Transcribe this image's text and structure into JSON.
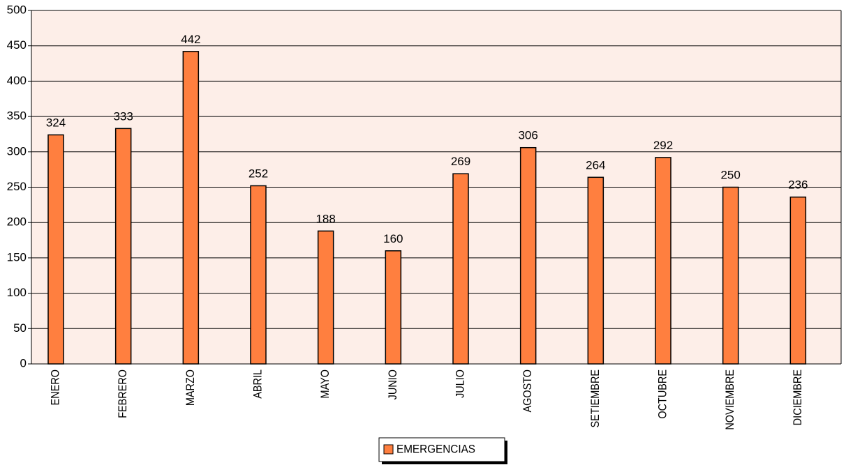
{
  "chart_data": {
    "type": "bar",
    "categories": [
      "ENERO",
      "FEBRERO",
      "MARZO",
      "ABRIL",
      "MAYO",
      "JUNIO",
      "JULIO",
      "AGOSTO",
      "SETIEMBRE",
      "OCTUBRE",
      "NOVIEMBRE",
      "DICIEMBRE"
    ],
    "series": [
      {
        "name": "EMERGENCIAS",
        "color": "#ff7f3f",
        "values": [
          324,
          333,
          442,
          252,
          188,
          160,
          269,
          306,
          264,
          292,
          250,
          236
        ]
      }
    ],
    "ylim": [
      0,
      500
    ],
    "yticks": [
      0,
      50,
      100,
      150,
      200,
      250,
      300,
      350,
      400,
      450,
      500
    ],
    "grid": true,
    "legend": "bottom"
  }
}
